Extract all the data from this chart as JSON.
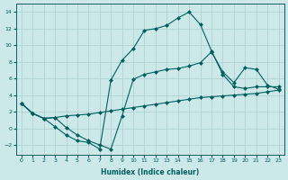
{
  "xlabel": "Humidex (Indice chaleur)",
  "ylabel": "",
  "bg_color": "#cce8e8",
  "grid_color": "#aacece",
  "line_color": "#006060",
  "xlim": [
    -0.5,
    23.5
  ],
  "ylim": [
    -3.2,
    15.0
  ],
  "xticks": [
    0,
    1,
    2,
    3,
    4,
    5,
    6,
    7,
    8,
    9,
    10,
    11,
    12,
    13,
    14,
    15,
    16,
    17,
    18,
    19,
    20,
    21,
    22,
    23
  ],
  "yticks": [
    -2,
    0,
    2,
    4,
    6,
    8,
    10,
    12,
    14
  ],
  "line1_x": [
    0,
    1,
    2,
    3,
    4,
    5,
    6,
    7,
    8,
    9,
    10,
    11,
    12,
    13,
    14,
    15,
    16,
    17,
    18,
    19,
    20,
    21,
    22,
    23
  ],
  "line1_y": [
    3.0,
    1.8,
    1.2,
    1.3,
    1.5,
    1.6,
    1.7,
    1.9,
    2.1,
    2.3,
    2.5,
    2.7,
    2.9,
    3.1,
    3.3,
    3.5,
    3.7,
    3.8,
    3.9,
    4.0,
    4.1,
    4.2,
    4.4,
    4.6
  ],
  "line2_x": [
    0,
    1,
    2,
    3,
    4,
    5,
    6,
    7,
    8,
    9,
    10,
    11,
    12,
    13,
    14,
    15,
    16,
    17,
    18,
    19,
    20,
    21,
    22,
    23
  ],
  "line2_y": [
    3.0,
    1.8,
    1.2,
    0.2,
    -0.8,
    -1.5,
    -1.7,
    -2.5,
    5.8,
    8.2,
    9.6,
    11.8,
    12.0,
    12.4,
    13.3,
    14.0,
    12.5,
    9.3,
    6.5,
    5.0,
    4.8,
    5.0,
    5.0,
    5.0
  ],
  "line3_x": [
    0,
    1,
    2,
    3,
    4,
    5,
    6,
    7,
    8,
    9,
    10,
    11,
    12,
    13,
    14,
    15,
    16,
    17,
    18,
    19,
    20,
    21,
    22,
    23
  ],
  "line3_y": [
    3.0,
    1.8,
    1.2,
    1.3,
    0.1,
    -0.8,
    -1.5,
    -2.0,
    -2.5,
    1.5,
    5.9,
    6.5,
    6.8,
    7.1,
    7.2,
    7.5,
    7.9,
    9.2,
    6.8,
    5.5,
    7.3,
    7.1,
    5.2,
    4.7
  ]
}
